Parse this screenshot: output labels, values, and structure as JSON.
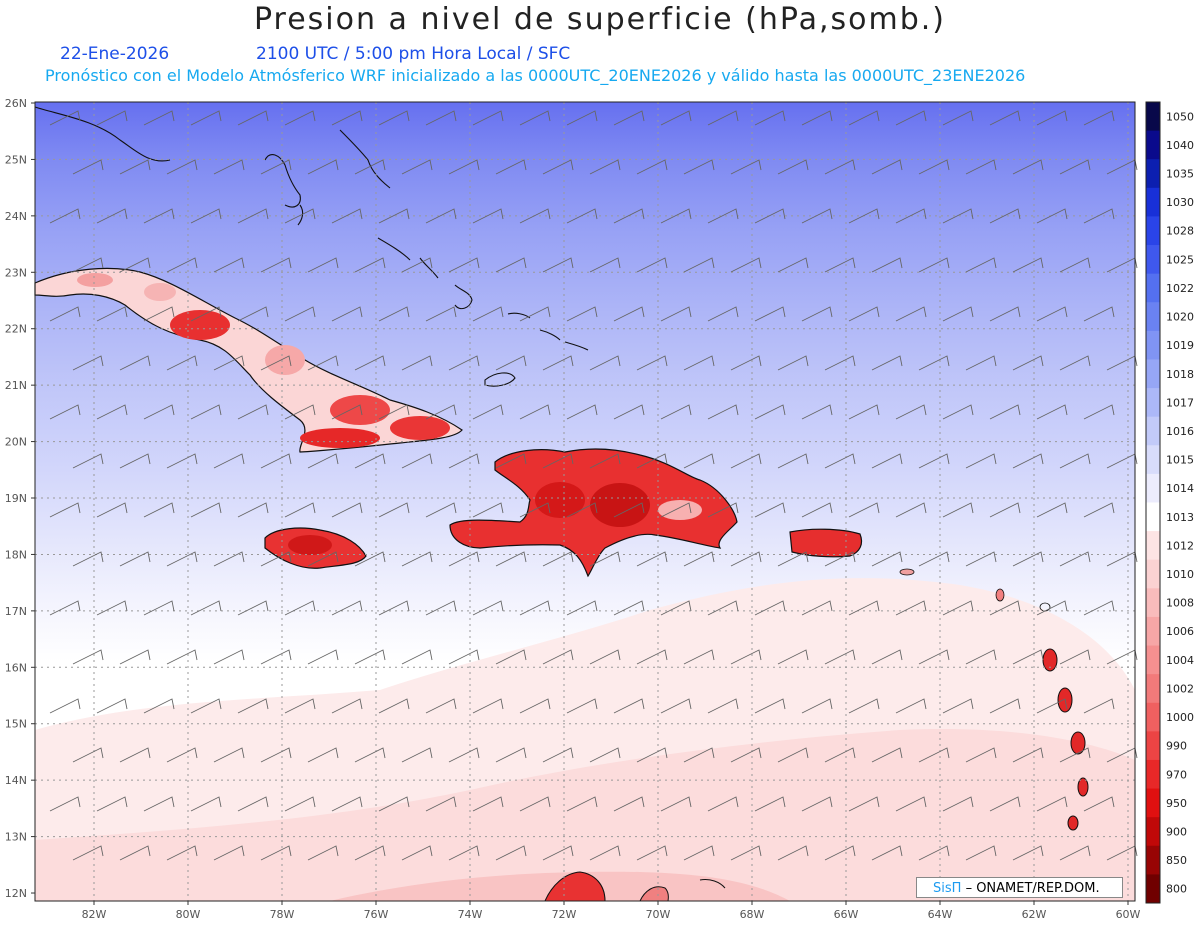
{
  "title": "Presion a nivel de superficie (hPa,somb.)",
  "date": "22-Ene-2026",
  "time_info": "2100 UTC / 5:00 pm Hora Local / SFC",
  "model_info": "Pronóstico con el Modelo Atmósferico WRF inicializado a las 0000UTC_20ENE2026 y válido hasta las  0000UTC_23ENE2026",
  "credit": {
    "brand": "SisΠ",
    "text": "– ONAMET/REP.DOM."
  },
  "lat_labels": [
    "26N",
    "25N",
    "24N",
    "23N",
    "22N",
    "21N",
    "20N",
    "19N",
    "18N",
    "17N",
    "16N",
    "15N",
    "14N",
    "13N",
    "12N"
  ],
  "lon_labels": [
    "82W",
    "80W",
    "78W",
    "76W",
    "74W",
    "72W",
    "70W",
    "68W",
    "66W",
    "64W",
    "62W",
    "60W"
  ],
  "colorbar": {
    "levels": [
      "1050",
      "1040",
      "1035",
      "1030",
      "1028",
      "1025",
      "1022",
      "1020",
      "1019",
      "1018",
      "1017",
      "1016",
      "1015",
      "1014",
      "1013",
      "1012",
      "1010",
      "1008",
      "1006",
      "1004",
      "1002",
      "1000",
      "990",
      "970",
      "950",
      "900",
      "850",
      "800"
    ],
    "colors": [
      "#08084a",
      "#0a0a8c",
      "#0c1fb0",
      "#1830d8",
      "#2a44e8",
      "#3f58ee",
      "#5470f0",
      "#6a82f2",
      "#8094f4",
      "#96a6f6",
      "#acb8f8",
      "#c2caf9",
      "#d8dcfb",
      "#ececfd",
      "#ffffff",
      "#fde4e4",
      "#fbd2d2",
      "#f9bcbc",
      "#f7a6a6",
      "#f59090",
      "#f27a7a",
      "#f06060",
      "#ec4444",
      "#e82828",
      "#e01010",
      "#c00808",
      "#980404",
      "#700000"
    ]
  },
  "places": [
    "Cuba",
    "Jamaica",
    "La Española",
    "Puerto Rico",
    "Bahamas",
    "Antillas Menores"
  ]
}
